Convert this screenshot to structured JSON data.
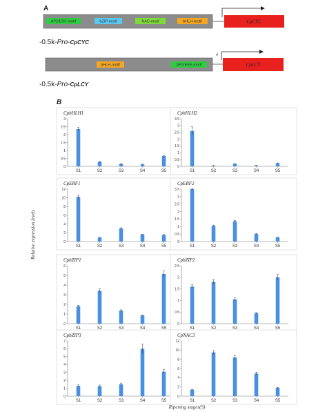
{
  "panel_a": {
    "letter": "A",
    "promoters": [
      {
        "motifs": [
          {
            "label": "AP2/ERF-motif",
            "color": "#2ecc40"
          },
          {
            "label": "bZIP-motif",
            "color": "#5bc8f0"
          },
          {
            "label": "NAC-motif",
            "color": "#7fd93a"
          },
          {
            "label": "bHLH-motif",
            "color": "#f5a623"
          }
        ],
        "gene_label": "CpCYC",
        "gene_color": "#e8201e",
        "caption_prefix": "-0.5k-",
        "caption_pro": "Pro",
        "caption_dash": "-",
        "caption_gene": "CpCYC",
        "hash": ""
      },
      {
        "motifs": [
          {
            "label": "bHLH-motif",
            "color": "#f5a623"
          },
          {
            "label": "AP2/ERF-motif",
            "color": "#2ecc40"
          }
        ],
        "gene_label": "CpLCY",
        "gene_color": "#e8201e",
        "caption_prefix": "-0.5k-",
        "caption_pro": "Pro",
        "caption_dash": "-",
        "caption_gene": "CpLCY",
        "hash": "#"
      }
    ]
  },
  "panel_b": {
    "letter": "B",
    "ylabel": "Relative expression levels",
    "xlabel": "Ripening stages(S)",
    "bar_color": "#4a90e2"
  },
  "chart_data": [
    {
      "type": "bar",
      "title": "CpbHLH1",
      "categories": [
        "S1",
        "S2",
        "S3",
        "S4",
        "S5"
      ],
      "values": [
        2.35,
        0.28,
        0.15,
        0.12,
        0.65
      ],
      "errors": [
        0.1,
        0.03,
        0.02,
        0.02,
        0.04
      ],
      "ylim": [
        0,
        3
      ],
      "yticks": [
        0,
        0.5,
        1,
        1.5,
        2,
        2.5,
        3
      ]
    },
    {
      "type": "bar",
      "title": "CpbHLH2",
      "categories": [
        "S1",
        "S2",
        "S3",
        "S4",
        "S5"
      ],
      "values": [
        2.6,
        0.05,
        0.18,
        0.06,
        0.22
      ],
      "errors": [
        0.3,
        0.01,
        0.02,
        0.01,
        0.03
      ],
      "ylim": [
        0,
        3.5
      ],
      "yticks": [
        0,
        0.5,
        1,
        1.5,
        2,
        2.5,
        3,
        3.5
      ]
    },
    {
      "type": "bar",
      "title": "CpERF1",
      "categories": [
        "S1",
        "S2",
        "S3",
        "S4",
        "S5"
      ],
      "values": [
        10.2,
        0.9,
        3.0,
        1.6,
        1.5
      ],
      "errors": [
        0.4,
        0.08,
        0.15,
        0.1,
        0.1
      ],
      "ylim": [
        0,
        12
      ],
      "yticks": [
        0,
        2,
        4,
        6,
        8,
        10,
        12
      ]
    },
    {
      "type": "bar",
      "title": "CpERF2",
      "categories": [
        "S1",
        "S2",
        "S3",
        "S4",
        "S5"
      ],
      "values": [
        3.5,
        1.05,
        1.35,
        0.5,
        0.27
      ],
      "errors": [
        0.05,
        0.05,
        0.06,
        0.04,
        0.03
      ],
      "ylim": [
        0,
        3.5
      ],
      "yticks": [
        0,
        0.5,
        1,
        1.5,
        2,
        2.5,
        3,
        3.5
      ]
    },
    {
      "type": "bar",
      "title": "CpbZIP1",
      "categories": [
        "S1",
        "S2",
        "S3",
        "S4",
        "S5"
      ],
      "values": [
        1.8,
        3.4,
        1.35,
        0.85,
        5.15
      ],
      "errors": [
        0.1,
        0.2,
        0.08,
        0.05,
        0.3
      ],
      "ylim": [
        0,
        6
      ],
      "yticks": [
        0,
        1,
        2,
        3,
        4,
        5,
        6
      ]
    },
    {
      "type": "bar",
      "title": "CpbZIP2",
      "categories": [
        "S1",
        "S2",
        "S3",
        "S4",
        "S5"
      ],
      "values": [
        1.6,
        1.8,
        1.05,
        0.45,
        2.0
      ],
      "errors": [
        0.08,
        0.1,
        0.06,
        0.03,
        0.12
      ],
      "ylim": [
        0,
        2.5
      ],
      "yticks": [
        0,
        0.5,
        1,
        1.5,
        2,
        2.5
      ]
    },
    {
      "type": "bar",
      "title": "CpbZIP3",
      "categories": [
        "S1",
        "S2",
        "S3",
        "S4",
        "S5"
      ],
      "values": [
        1.3,
        1.25,
        1.5,
        6.0,
        3.1
      ],
      "errors": [
        0.12,
        0.15,
        0.15,
        0.6,
        0.3
      ],
      "ylim": [
        0,
        7
      ],
      "yticks": [
        0,
        1,
        2,
        3,
        4,
        5,
        6,
        7
      ]
    },
    {
      "type": "bar",
      "title": "CpNAC3",
      "categories": [
        "S1",
        "S2",
        "S3",
        "S4",
        "S5"
      ],
      "values": [
        1.4,
        9.5,
        8.4,
        4.9,
        1.8
      ],
      "errors": [
        0.1,
        0.4,
        0.4,
        0.3,
        0.1
      ],
      "ylim": [
        0,
        12
      ],
      "yticks": [
        0,
        2,
        4,
        6,
        8,
        10,
        12
      ]
    }
  ]
}
